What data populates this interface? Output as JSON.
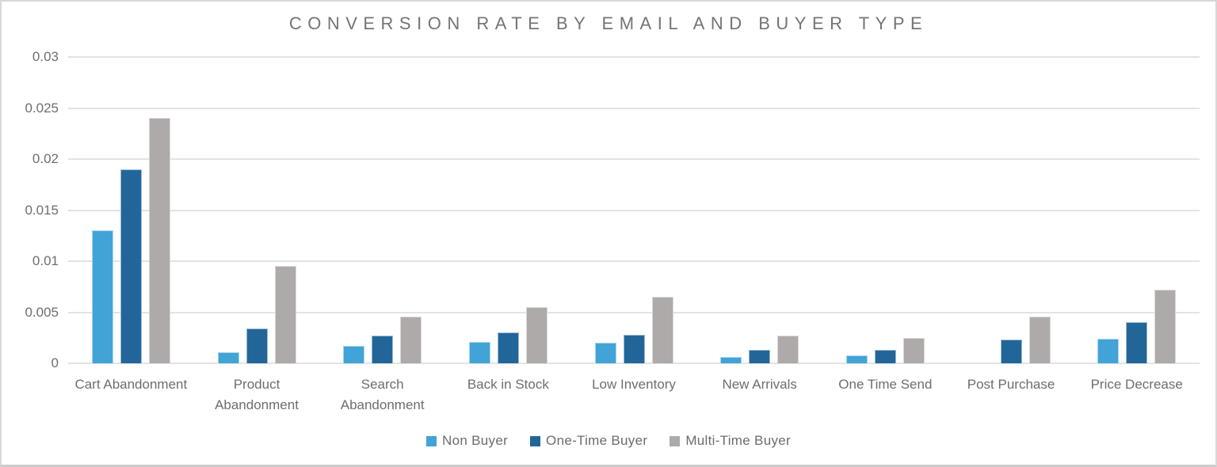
{
  "title": "CONVERSION RATE BY EMAIL AND BUYER TYPE",
  "colors": {
    "non_buyer": "#41A3D6",
    "one_time_buyer": "#226699",
    "multi_time_buyer": "#AEAAA9",
    "axis_text": "#6d6e71",
    "gridline": "#e3e3e3"
  },
  "chart_data": {
    "type": "bar",
    "title": "CONVERSION RATE BY EMAIL AND BUYER TYPE",
    "xlabel": "",
    "ylabel": "",
    "ylim": [
      0,
      0.03
    ],
    "yticks": [
      0,
      0.005,
      0.01,
      0.015,
      0.02,
      0.025,
      0.03
    ],
    "ytick_labels": [
      "0",
      "0.005",
      "0.01",
      "0.015",
      "0.02",
      "0.025",
      "0.03"
    ],
    "grid": true,
    "legend_position": "bottom",
    "categories": [
      "Cart Abandonment",
      "Product Abandonment",
      "Search Abandonment",
      "Back in Stock",
      "Low Inventory",
      "New Arrivals",
      "One Time Send",
      "Post Purchase",
      "Price Decrease"
    ],
    "series": [
      {
        "name": "Non Buyer",
        "color": "#41A3D6",
        "values": [
          0.013,
          0.0011,
          0.0017,
          0.0021,
          0.002,
          0.0006,
          0.0008,
          0,
          0.0024
        ]
      },
      {
        "name": "One-Time Buyer",
        "color": "#226699",
        "values": [
          0.019,
          0.0034,
          0.0027,
          0.003,
          0.0028,
          0.0013,
          0.0013,
          0.0023,
          0.004
        ]
      },
      {
        "name": "Multi-Time Buyer",
        "color": "#AEAAA9",
        "values": [
          0.024,
          0.0095,
          0.0046,
          0.0055,
          0.0065,
          0.0027,
          0.0025,
          0.0046,
          0.0072
        ]
      }
    ]
  }
}
